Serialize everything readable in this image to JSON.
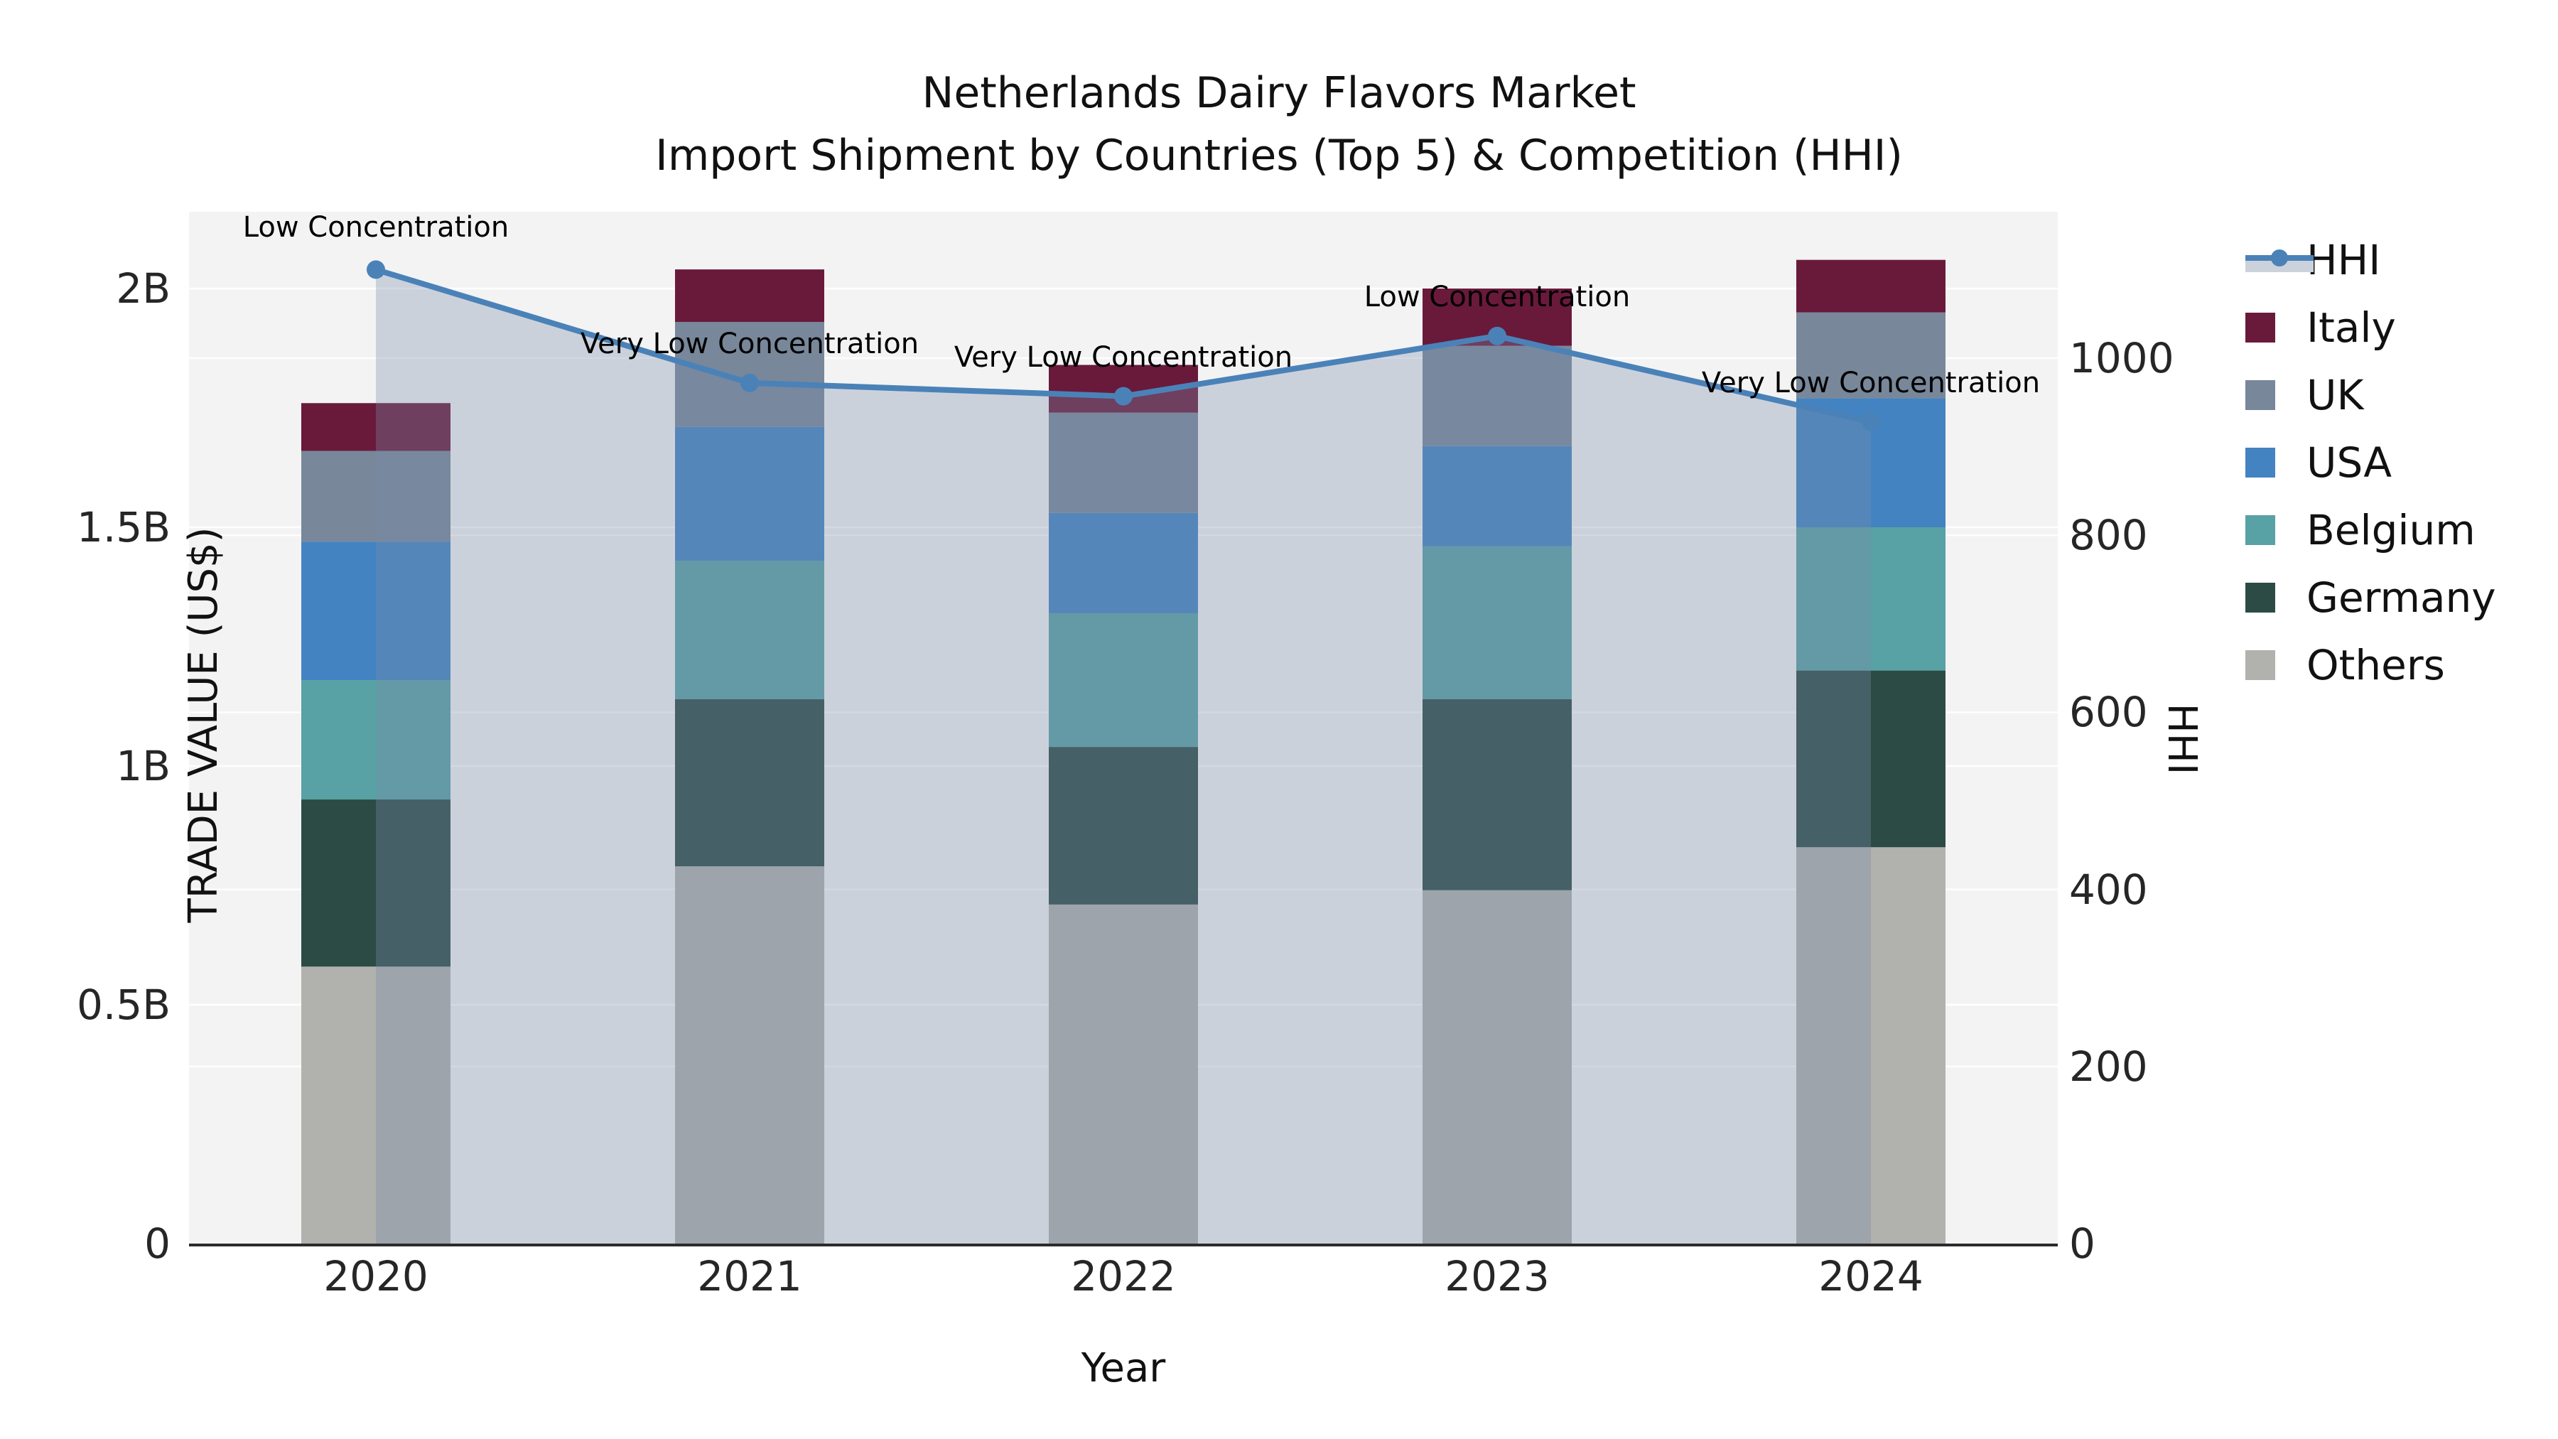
{
  "title": {
    "line1": "Netherlands Dairy Flavors Market",
    "line2": "Import Shipment by Countries (Top 5) & Competition (HHI)"
  },
  "chart_data": {
    "type": "combo: stacked bar (left axis) + HHI line with translucent area fill (right axis)",
    "x": [
      "2020",
      "2021",
      "2022",
      "2023",
      "2024"
    ],
    "xlabel": "Year",
    "left_axis": {
      "title": "TRADE VALUE (US$)",
      "units": "billion US$",
      "tick_values": [
        0,
        0.5,
        1,
        1.5,
        2
      ],
      "tick_labels": [
        "0",
        "0.5B",
        "1B",
        "1.5B",
        "2B"
      ],
      "range": [
        0,
        2.16
      ]
    },
    "right_axis": {
      "title": "HHI",
      "tick_values": [
        0,
        200,
        400,
        600,
        800,
        1000
      ],
      "tick_labels": [
        "0",
        "200",
        "400",
        "600",
        "800",
        "1000"
      ],
      "range": [
        0,
        1165
      ]
    },
    "bar_series_bottom_to_top": [
      {
        "name": "Others",
        "color": "#b1b1ae",
        "values": [
          0.58,
          0.79,
          0.71,
          0.74,
          0.83
        ]
      },
      {
        "name": "Germany",
        "color": "#2c4b45",
        "values": [
          0.35,
          0.35,
          0.33,
          0.4,
          0.37
        ]
      },
      {
        "name": "Belgium",
        "color": "#58a1a4",
        "values": [
          0.25,
          0.29,
          0.28,
          0.32,
          0.3
        ]
      },
      {
        "name": "USA",
        "color": "#4383c1",
        "values": [
          0.29,
          0.28,
          0.21,
          0.21,
          0.27
        ]
      },
      {
        "name": "UK",
        "color": "#78879a",
        "values": [
          0.19,
          0.22,
          0.21,
          0.21,
          0.18
        ]
      },
      {
        "name": "Italy",
        "color": "#691a3b",
        "values": [
          0.1,
          0.11,
          0.1,
          0.12,
          0.11
        ]
      }
    ],
    "bar_totals": [
      1.76,
      2.04,
      1.84,
      2.0,
      2.06
    ],
    "line_series": {
      "name": "HHI",
      "axis": "right",
      "color": "#4a82b8",
      "fill_under_color": "rgba(120,140,170,0.33)",
      "values": [
        1100,
        972,
        957,
        1025,
        928
      ]
    },
    "annotations": [
      {
        "x": "2020",
        "text": "Low Concentration"
      },
      {
        "x": "2021",
        "text": "Very Low Concentration"
      },
      {
        "x": "2022",
        "text": "Very Low Concentration"
      },
      {
        "x": "2023",
        "text": "Low Concentration"
      },
      {
        "x": "2024",
        "text": "Very Low Concentration"
      }
    ],
    "legend_position": "right",
    "grid": "white horizontal gridlines on light gray plot background"
  },
  "legend": {
    "items": [
      {
        "label": "HHI",
        "type": "line-marker",
        "color": "#4a82b8"
      },
      {
        "label": "Italy",
        "type": "swatch",
        "color": "#691a3b"
      },
      {
        "label": "UK",
        "type": "swatch",
        "color": "#78879a"
      },
      {
        "label": "USA",
        "type": "swatch",
        "color": "#4383c1"
      },
      {
        "label": "Belgium",
        "type": "swatch",
        "color": "#58a1a4"
      },
      {
        "label": "Germany",
        "type": "swatch",
        "color": "#2c4b45"
      },
      {
        "label": "Others",
        "type": "swatch",
        "color": "#b1b1ae"
      }
    ]
  },
  "colors": {
    "plot_bg": "#f3f3f4",
    "grid": "#ffffff",
    "axis_line": "#2b2b2b",
    "hhi_line": "#4a82b8",
    "hhi_fill_over_bg": "#ccd2dc"
  }
}
